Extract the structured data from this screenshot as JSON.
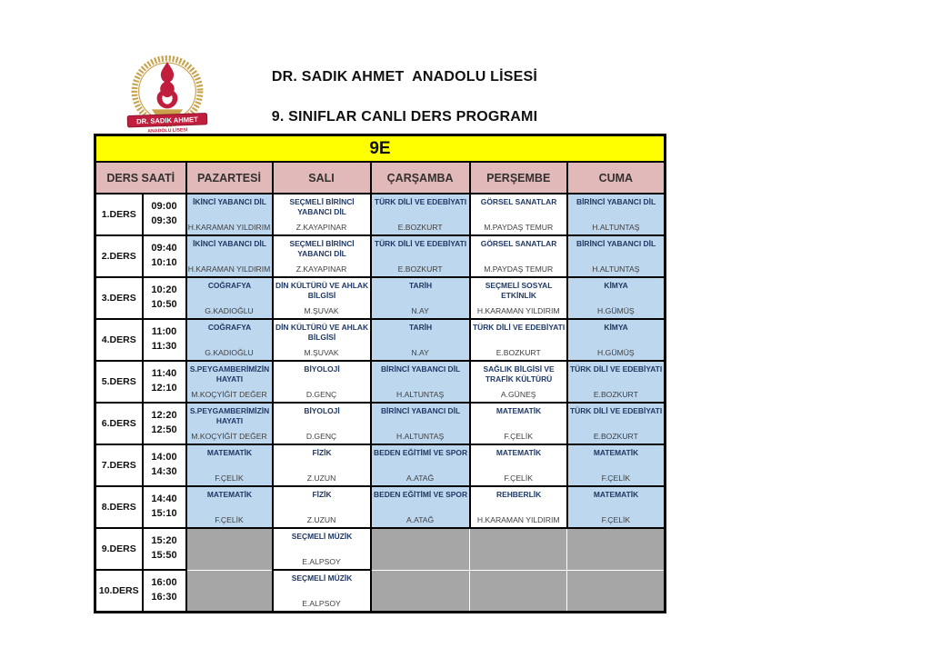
{
  "header": {
    "school_name": "DR. SADIK AHMET  ANADOLU LİSESİ",
    "program_title": "9. SINIFLAR CANLI DERS PROGRAMI",
    "logo": {
      "banner_line1": "DR. SADIK AHMET",
      "banner_line2": "ANADOLU LİSESİ",
      "flame_icon": "torch-flame-icon"
    }
  },
  "colors": {
    "class_row_bg": "#FFFF00",
    "day_header_bg": "#E2B9B9",
    "cell_blue_bg": "#BDD7EE",
    "cell_gray_bg": "#A6A6A6",
    "grid_border": "#000000",
    "subject_text": "#1F3864",
    "teacher_text": "#3F3F3F",
    "logo_red": "#C01E3C",
    "logo_gold": "#C9A24B"
  },
  "schedule": {
    "class_label": "9E",
    "columns": [
      "DERS SAATİ",
      "PAZARTESİ",
      "SALI",
      "ÇARŞAMBA",
      "PERŞEMBE",
      "CUMA"
    ],
    "rows": [
      {
        "lesson": "1.DERS",
        "time_start": "09:00",
        "time_end": "09:30",
        "cells": [
          {
            "bg": "blue",
            "subject_lines": [
              "İKİNCİ YABANCI DİL"
            ],
            "teacher": "H.KARAMAN YILDIRIM"
          },
          {
            "bg": "white",
            "subject_lines": [
              "SEÇMELİ BİRİNCİ",
              "YABANCI DİL"
            ],
            "teacher": "Z.KAYAPINAR"
          },
          {
            "bg": "blue",
            "subject_lines": [
              "TÜRK DİLİ VE EDEBİYATI"
            ],
            "teacher": "E.BOZKURT"
          },
          {
            "bg": "white",
            "subject_lines": [
              "GÖRSEL SANATLAR"
            ],
            "teacher": "M.PAYDAŞ TEMUR"
          },
          {
            "bg": "blue",
            "subject_lines": [
              "BİRİNCİ YABANCI DİL"
            ],
            "teacher": "H.ALTUNTAŞ"
          }
        ]
      },
      {
        "lesson": "2.DERS",
        "time_start": "09:40",
        "time_end": "10:10",
        "cells": [
          {
            "bg": "blue",
            "subject_lines": [
              "İKİNCİ YABANCI DİL"
            ],
            "teacher": "H.KARAMAN YILDIRIM"
          },
          {
            "bg": "white",
            "subject_lines": [
              "SEÇMELİ BİRİNCİ",
              "YABANCI DİL"
            ],
            "teacher": "Z.KAYAPINAR"
          },
          {
            "bg": "blue",
            "subject_lines": [
              "TÜRK DİLİ VE EDEBİYATI"
            ],
            "teacher": "E.BOZKURT"
          },
          {
            "bg": "white",
            "subject_lines": [
              "GÖRSEL SANATLAR"
            ],
            "teacher": "M.PAYDAŞ TEMUR"
          },
          {
            "bg": "blue",
            "subject_lines": [
              "BİRİNCİ YABANCI DİL"
            ],
            "teacher": "H.ALTUNTAŞ"
          }
        ]
      },
      {
        "lesson": "3.DERS",
        "time_start": "10:20",
        "time_end": "10:50",
        "cells": [
          {
            "bg": "blue",
            "subject_lines": [
              "COĞRAFYA"
            ],
            "teacher": "G.KADIOĞLU"
          },
          {
            "bg": "white",
            "subject_lines": [
              "DİN KÜLTÜRÜ VE AHLAK",
              "BİLGİSİ"
            ],
            "teacher": "M.ŞUVAK"
          },
          {
            "bg": "blue",
            "subject_lines": [
              "TARİH"
            ],
            "teacher": "N.AY"
          },
          {
            "bg": "white",
            "subject_lines": [
              "SEÇMELİ SOSYAL",
              "ETKİNLİK"
            ],
            "teacher": "H.KARAMAN YILDIRIM"
          },
          {
            "bg": "blue",
            "subject_lines": [
              "KİMYA"
            ],
            "teacher": "H.GÜMÜŞ"
          }
        ]
      },
      {
        "lesson": "4.DERS",
        "time_start": "11:00",
        "time_end": "11:30",
        "cells": [
          {
            "bg": "blue",
            "subject_lines": [
              "COĞRAFYA"
            ],
            "teacher": "G.KADIOĞLU"
          },
          {
            "bg": "white",
            "subject_lines": [
              "DİN KÜLTÜRÜ VE AHLAK",
              "BİLGİSİ"
            ],
            "teacher": "M.ŞUVAK"
          },
          {
            "bg": "blue",
            "subject_lines": [
              "TARİH"
            ],
            "teacher": "N.AY"
          },
          {
            "bg": "white",
            "subject_lines": [
              "TÜRK DİLİ VE EDEBİYATI"
            ],
            "teacher": "E.BOZKURT"
          },
          {
            "bg": "blue",
            "subject_lines": [
              "KİMYA"
            ],
            "teacher": "H.GÜMÜŞ"
          }
        ]
      },
      {
        "lesson": "5.DERS",
        "time_start": "11:40",
        "time_end": "12:10",
        "cells": [
          {
            "bg": "blue",
            "subject_lines": [
              "S.PEYGAMBERİMİZİN",
              "HAYATI"
            ],
            "teacher": "M.KOÇYİĞİT DEĞER"
          },
          {
            "bg": "white",
            "subject_lines": [
              "BİYOLOJİ"
            ],
            "teacher": "D.GENÇ"
          },
          {
            "bg": "blue",
            "subject_lines": [
              "BİRİNCİ YABANCI DİL"
            ],
            "teacher": "H.ALTUNTAŞ"
          },
          {
            "bg": "white",
            "subject_lines": [
              "SAĞLIK BİLGİSİ VE",
              "TRAFİK KÜLTÜRÜ"
            ],
            "teacher": "A.GÜNEŞ"
          },
          {
            "bg": "blue",
            "subject_lines": [
              "TÜRK DİLİ VE EDEBİYATI"
            ],
            "teacher": "E.BOZKURT"
          }
        ]
      },
      {
        "lesson": "6.DERS",
        "time_start": "12:20",
        "time_end": "12:50",
        "cells": [
          {
            "bg": "blue",
            "subject_lines": [
              "S.PEYGAMBERİMİZİN",
              "HAYATI"
            ],
            "teacher": "M.KOÇYİĞİT DEĞER"
          },
          {
            "bg": "white",
            "subject_lines": [
              "BİYOLOJİ"
            ],
            "teacher": "D.GENÇ"
          },
          {
            "bg": "blue",
            "subject_lines": [
              "BİRİNCİ YABANCI DİL"
            ],
            "teacher": "H.ALTUNTAŞ"
          },
          {
            "bg": "white",
            "subject_lines": [
              "MATEMATİK"
            ],
            "teacher": "F.ÇELİK"
          },
          {
            "bg": "blue",
            "subject_lines": [
              "TÜRK DİLİ VE EDEBİYATI"
            ],
            "teacher": "E.BOZKURT"
          }
        ]
      },
      {
        "lesson": "7.DERS",
        "time_start": "14:00",
        "time_end": "14:30",
        "cells": [
          {
            "bg": "blue",
            "subject_lines": [
              "MATEMATİK"
            ],
            "teacher": "F.ÇELİK"
          },
          {
            "bg": "white",
            "subject_lines": [
              "FİZİK"
            ],
            "teacher": "Z.UZUN"
          },
          {
            "bg": "blue",
            "subject_lines": [
              "BEDEN EĞİTİMİ VE SPOR"
            ],
            "teacher": "A.ATAĞ"
          },
          {
            "bg": "white",
            "subject_lines": [
              "MATEMATİK"
            ],
            "teacher": "F.ÇELİK"
          },
          {
            "bg": "blue",
            "subject_lines": [
              "MATEMATİK"
            ],
            "teacher": "F.ÇELİK"
          }
        ]
      },
      {
        "lesson": "8.DERS",
        "time_start": "14:40",
        "time_end": "15:10",
        "cells": [
          {
            "bg": "blue",
            "subject_lines": [
              "MATEMATİK"
            ],
            "teacher": "F.ÇELİK"
          },
          {
            "bg": "white",
            "subject_lines": [
              "FİZİK"
            ],
            "teacher": "Z.UZUN"
          },
          {
            "bg": "blue",
            "subject_lines": [
              "BEDEN EĞİTİMİ VE SPOR"
            ],
            "teacher": "A.ATAĞ"
          },
          {
            "bg": "white",
            "subject_lines": [
              "REHBERLİK"
            ],
            "teacher": "H.KARAMAN YILDIRIM"
          },
          {
            "bg": "blue",
            "subject_lines": [
              "MATEMATİK"
            ],
            "teacher": "F.ÇELİK"
          }
        ]
      },
      {
        "lesson": "9.DERS",
        "time_start": "15:20",
        "time_end": "15:50",
        "cells": [
          {
            "bg": "gray"
          },
          {
            "bg": "white",
            "subject_lines": [
              "SEÇMELİ MÜZİK"
            ],
            "teacher": "E.ALPSOY"
          },
          {
            "bg": "gray"
          },
          {
            "bg": "gray"
          },
          {
            "bg": "gray"
          }
        ]
      },
      {
        "lesson": "10.DERS",
        "time_start": "16:00",
        "time_end": "16:30",
        "cells": [
          {
            "bg": "gray"
          },
          {
            "bg": "white",
            "subject_lines": [
              "SEÇMELİ MÜZİK"
            ],
            "teacher": "E.ALPSOY"
          },
          {
            "bg": "gray"
          },
          {
            "bg": "gray"
          },
          {
            "bg": "gray"
          }
        ]
      }
    ]
  }
}
